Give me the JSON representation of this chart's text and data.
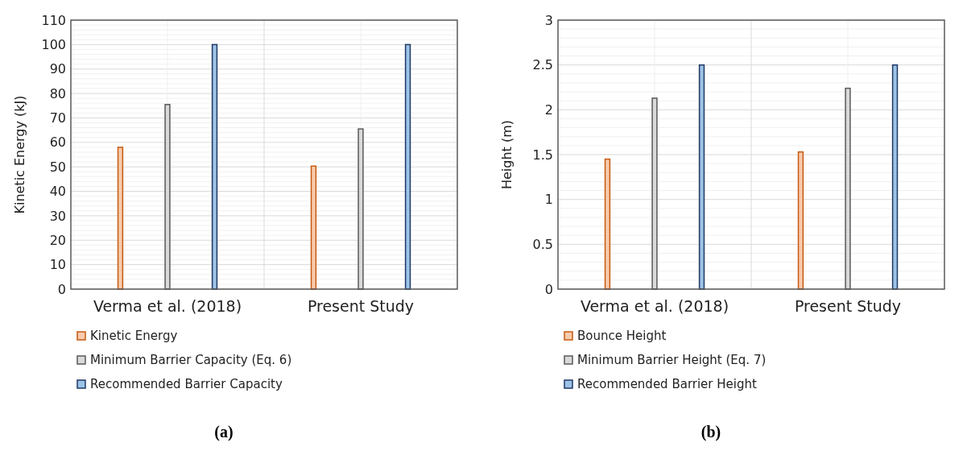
{
  "chart_data": [
    {
      "type": "bar",
      "ylabel": "Kinetic Energy (kJ)",
      "categories": [
        "Verma et al. (2018)",
        "Present Study"
      ],
      "series": [
        {
          "name": "Kinetic Energy",
          "color": "#f8cbad",
          "values": [
            58,
            50.3
          ]
        },
        {
          "name": "Minimum Barrier Capacity (Eq. 6)",
          "color": "#d9d9d9",
          "values": [
            75.5,
            65.5
          ]
        },
        {
          "name": "Recommended Barrier Capacity",
          "color": "#9dc3e6",
          "values": [
            100,
            100
          ]
        }
      ],
      "ylim": [
        0,
        110
      ],
      "yticks": [
        0,
        10,
        20,
        30,
        40,
        50,
        60,
        70,
        80,
        90,
        100,
        110
      ],
      "grid": true,
      "legend": "bottom left",
      "annotations": [
        "(a)"
      ]
    },
    {
      "type": "bar",
      "ylabel": "Height (m)",
      "categories": [
        "Verma et al. (2018)",
        "Present Study"
      ],
      "series": [
        {
          "name": "Bounce Height",
          "color": "#f8cbad",
          "values": [
            1.45,
            1.53
          ]
        },
        {
          "name": "Minimum Barrier Height (Eq. 7)",
          "color": "#d9d9d9",
          "values": [
            2.13,
            2.24
          ]
        },
        {
          "name": "Recommended Barrier Height",
          "color": "#9dc3e6",
          "values": [
            2.5,
            2.5
          ]
        }
      ],
      "ylim": [
        0,
        3
      ],
      "yticks": [
        0,
        0.5,
        1,
        1.5,
        2,
        2.5,
        3
      ],
      "grid": true,
      "legend": "bottom left",
      "annotations": [
        "(b)"
      ]
    }
  ]
}
